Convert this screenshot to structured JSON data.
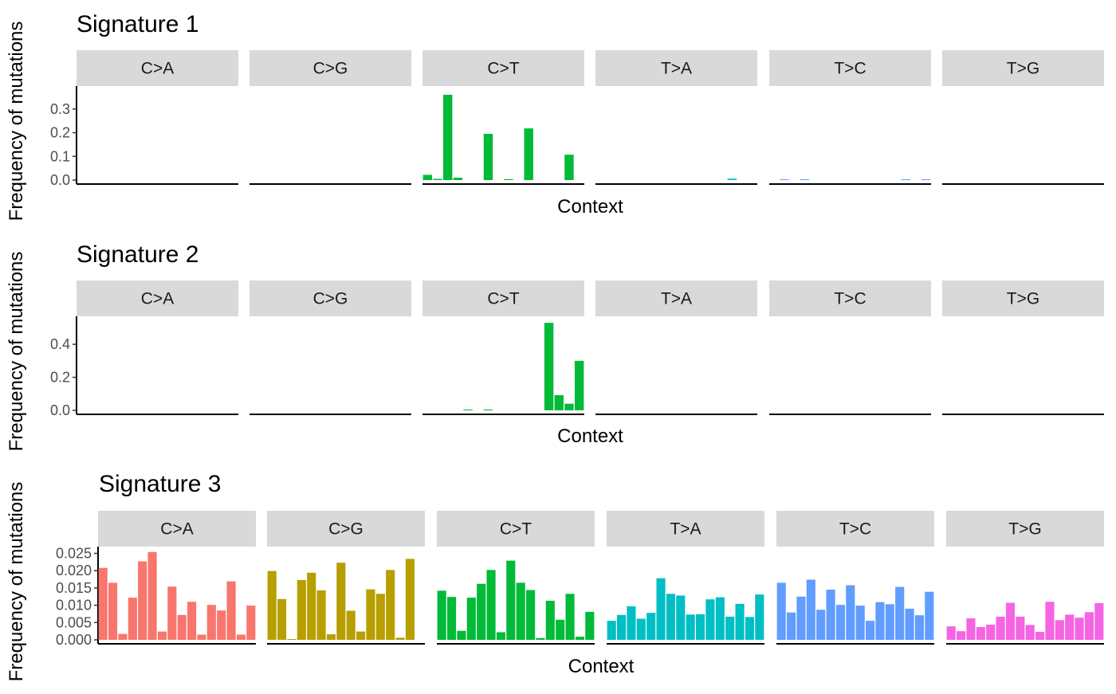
{
  "chart_data": [
    {
      "type": "bar",
      "title": "Signature 1",
      "ylabel": "Frequency of mutations",
      "xlabel": "Context",
      "ylim": [
        0,
        0.39
      ],
      "yticks": [
        "0.0",
        "0.1",
        "0.2",
        "0.3"
      ],
      "ytick_values": [
        0.0,
        0.1,
        0.2,
        0.3
      ],
      "grid": false,
      "panels": [
        {
          "name": "C>A",
          "color": "#F8766D",
          "values": [
            0,
            0,
            0,
            0,
            0,
            0,
            0,
            0,
            0,
            0,
            0,
            0,
            0,
            0,
            0,
            0
          ]
        },
        {
          "name": "C>G",
          "color": "#B79F00",
          "values": [
            0,
            0,
            0,
            0,
            0,
            0,
            0,
            0,
            0,
            0,
            0,
            0,
            0,
            0,
            0,
            0
          ]
        },
        {
          "name": "C>T",
          "color": "#00BA38",
          "values": [
            0.022,
            0.005,
            0.36,
            0.01,
            0,
            0,
            0.195,
            0,
            0.004,
            0,
            0.218,
            0,
            0,
            0,
            0.107,
            0
          ]
        },
        {
          "name": "T>A",
          "color": "#00BFC4",
          "values": [
            0,
            0,
            0,
            0,
            0,
            0,
            0,
            0,
            0,
            0,
            0,
            0,
            0,
            0.006,
            0,
            0
          ]
        },
        {
          "name": "T>C",
          "color": "#619CFF",
          "values": [
            0,
            0.002,
            0,
            0.002,
            0,
            0,
            0,
            0,
            0,
            0,
            0,
            0,
            0,
            0.002,
            0,
            0.002
          ]
        },
        {
          "name": "T>G",
          "color": "#F564E3",
          "values": [
            0,
            0,
            0,
            0,
            0,
            0,
            0,
            0,
            0,
            0,
            0,
            0,
            0,
            0,
            0,
            0
          ]
        }
      ]
    },
    {
      "type": "bar",
      "title": "Signature 2",
      "ylabel": "Frequency of mutations",
      "xlabel": "Context",
      "ylim": [
        0,
        0.56
      ],
      "yticks": [
        "0.0",
        "0.2",
        "0.4"
      ],
      "ytick_values": [
        0.0,
        0.2,
        0.4
      ],
      "grid": false,
      "panels": [
        {
          "name": "C>A",
          "color": "#F8766D",
          "values": [
            0,
            0,
            0,
            0,
            0,
            0,
            0,
            0,
            0,
            0,
            0,
            0,
            0,
            0,
            0,
            0
          ]
        },
        {
          "name": "C>G",
          "color": "#B79F00",
          "values": [
            0,
            0,
            0,
            0,
            0,
            0,
            0,
            0,
            0,
            0,
            0,
            0,
            0,
            0,
            0,
            0
          ]
        },
        {
          "name": "C>T",
          "color": "#00BA38",
          "values": [
            0,
            0,
            0,
            0,
            0.003,
            0,
            0.003,
            0,
            0,
            0,
            0,
            0,
            0.53,
            0.092,
            0.04,
            0.3
          ]
        },
        {
          "name": "T>A",
          "color": "#00BFC4",
          "values": [
            0,
            0,
            0,
            0,
            0,
            0,
            0,
            0,
            0,
            0,
            0,
            0,
            0,
            0,
            0,
            0
          ]
        },
        {
          "name": "T>C",
          "color": "#619CFF",
          "values": [
            0,
            0,
            0,
            0,
            0,
            0,
            0,
            0,
            0,
            0,
            0,
            0,
            0,
            0,
            0,
            0
          ]
        },
        {
          "name": "T>G",
          "color": "#F564E3",
          "values": [
            0,
            0,
            0,
            0,
            0,
            0,
            0,
            0,
            0,
            0,
            0,
            0,
            0,
            0,
            0,
            0
          ]
        }
      ]
    },
    {
      "type": "bar",
      "title": "Signature 3",
      "ylabel": "Frequency of mutations",
      "xlabel": "Context",
      "ylim": [
        0,
        0.0265
      ],
      "yticks": [
        "0.000",
        "0.005",
        "0.010",
        "0.015",
        "0.020",
        "0.025"
      ],
      "ytick_values": [
        0.0,
        0.005,
        0.01,
        0.015,
        0.02,
        0.025
      ],
      "grid": false,
      "panels": [
        {
          "name": "C>A",
          "color": "#F8766D",
          "values": [
            0.0208,
            0.0165,
            0.0017,
            0.0122,
            0.0227,
            0.0254,
            0.0024,
            0.0154,
            0.0072,
            0.011,
            0.0015,
            0.0101,
            0.0085,
            0.0169,
            0.0015,
            0.0099
          ]
        },
        {
          "name": "C>G",
          "color": "#B79F00",
          "values": [
            0.0199,
            0.0118,
            0.0001,
            0.0173,
            0.0194,
            0.0143,
            0.0016,
            0.0223,
            0.0084,
            0.0024,
            0.0146,
            0.0133,
            0.0202,
            0.0006,
            0.0234,
            0
          ]
        },
        {
          "name": "C>T",
          "color": "#00BA38",
          "values": [
            0.0142,
            0.0124,
            0.0026,
            0.0122,
            0.0162,
            0.0202,
            0.0022,
            0.0229,
            0.0165,
            0.0144,
            0.0005,
            0.0113,
            0.0058,
            0.0133,
            0.0009,
            0.0081
          ]
        },
        {
          "name": "T>A",
          "color": "#00BFC4",
          "values": [
            0.0055,
            0.0072,
            0.0097,
            0.0061,
            0.0078,
            0.0178,
            0.0133,
            0.0128,
            0.0073,
            0.0074,
            0.0117,
            0.0123,
            0.0067,
            0.0104,
            0.0066,
            0.0131
          ]
        },
        {
          "name": "T>C",
          "color": "#619CFF",
          "values": [
            0.0165,
            0.0079,
            0.0125,
            0.0174,
            0.0087,
            0.0145,
            0.0101,
            0.0158,
            0.0099,
            0.0055,
            0.0109,
            0.0103,
            0.0153,
            0.009,
            0.0071,
            0.0139
          ]
        },
        {
          "name": "T>G",
          "color": "#F564E3",
          "values": [
            0.0039,
            0.0025,
            0.0062,
            0.0037,
            0.0044,
            0.0067,
            0.0107,
            0.0067,
            0.0043,
            0.0023,
            0.011,
            0.0057,
            0.0073,
            0.0064,
            0.008,
            0.0106
          ]
        }
      ]
    }
  ]
}
